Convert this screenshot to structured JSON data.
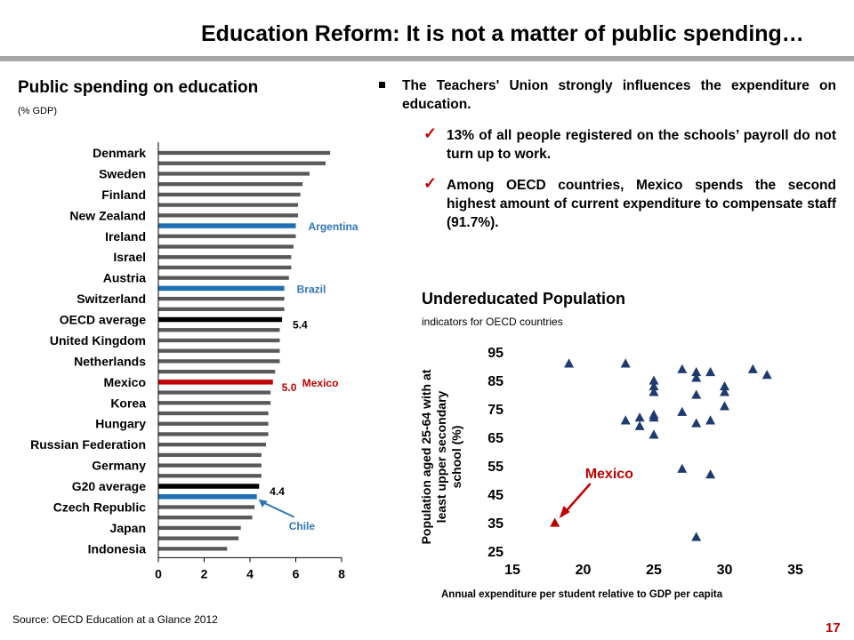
{
  "slide": {
    "title": "Education Reform: It is not a matter of public spending…",
    "source": "Source: OECD Education at a Glance 2012",
    "page_number": "17"
  },
  "bullets": {
    "main": "The Teachers' Union strongly influences the expenditure on education.",
    "sub": [
      "13% of all people registered on the schools’ payroll do not turn up to work.",
      "Among OECD countries, Mexico spends the second highest amount of current expenditure to compensate staff (91.7%)."
    ]
  },
  "colors": {
    "bar_default": "#595959",
    "bar_blue": "#1f6fb5",
    "bar_black": "#000000",
    "bar_red": "#c00000",
    "accent_red": "#c00000",
    "marker_navy": "#1f3a6e",
    "label_blue": "#2e75b6"
  },
  "chart_data": [
    {
      "type": "bar",
      "orientation": "horizontal",
      "title": "Public spending on education",
      "subtitle": "(% GDP)",
      "xlim": [
        0,
        8
      ],
      "xticks": [
        "0",
        "2",
        "4",
        "6",
        "8"
      ],
      "grid": false,
      "bars": [
        {
          "label": "Denmark",
          "value": 7.5,
          "color": "default"
        },
        {
          "label": "",
          "value": 7.3,
          "color": "default"
        },
        {
          "label": "Sweden",
          "value": 6.6,
          "color": "default"
        },
        {
          "label": "",
          "value": 6.3,
          "color": "default"
        },
        {
          "label": "Finland",
          "value": 6.2,
          "color": "default"
        },
        {
          "label": "",
          "value": 6.1,
          "color": "default"
        },
        {
          "label": "New Zealand",
          "value": 6.1,
          "color": "default"
        },
        {
          "label": "",
          "value": 6.0,
          "color": "blue",
          "annotation": "Argentina"
        },
        {
          "label": "Ireland",
          "value": 6.0,
          "color": "default"
        },
        {
          "label": "",
          "value": 5.9,
          "color": "default"
        },
        {
          "label": "Israel",
          "value": 5.8,
          "color": "default"
        },
        {
          "label": "",
          "value": 5.8,
          "color": "default"
        },
        {
          "label": "Austria",
          "value": 5.7,
          "color": "default"
        },
        {
          "label": "",
          "value": 5.5,
          "color": "blue",
          "annotation": "Brazil"
        },
        {
          "label": "Switzerland",
          "value": 5.5,
          "color": "default"
        },
        {
          "label": "",
          "value": 5.5,
          "color": "default"
        },
        {
          "label": "OECD average",
          "value": 5.4,
          "color": "black",
          "data_label": "5.4"
        },
        {
          "label": "",
          "value": 5.3,
          "color": "default"
        },
        {
          "label": "United Kingdom",
          "value": 5.3,
          "color": "default"
        },
        {
          "label": "",
          "value": 5.3,
          "color": "default"
        },
        {
          "label": "Netherlands",
          "value": 5.3,
          "color": "default"
        },
        {
          "label": "",
          "value": 5.1,
          "color": "default"
        },
        {
          "label": "Mexico",
          "value": 5.0,
          "color": "red",
          "data_label": "5.0",
          "annotation": "Mexico"
        },
        {
          "label": "",
          "value": 4.9,
          "color": "default"
        },
        {
          "label": "Korea",
          "value": 4.9,
          "color": "default"
        },
        {
          "label": "",
          "value": 4.8,
          "color": "default"
        },
        {
          "label": "Hungary",
          "value": 4.8,
          "color": "default"
        },
        {
          "label": "",
          "value": 4.8,
          "color": "default"
        },
        {
          "label": "Russian Federation",
          "value": 4.7,
          "color": "default"
        },
        {
          "label": "",
          "value": 4.5,
          "color": "default"
        },
        {
          "label": "Germany",
          "value": 4.5,
          "color": "default"
        },
        {
          "label": "",
          "value": 4.5,
          "color": "default"
        },
        {
          "label": "G20 average",
          "value": 4.4,
          "color": "black",
          "data_label": "4.4"
        },
        {
          "label": "",
          "value": 4.3,
          "color": "blue",
          "annotation": "Chile"
        },
        {
          "label": "Czech Republic",
          "value": 4.2,
          "color": "default"
        },
        {
          "label": "",
          "value": 4.1,
          "color": "default"
        },
        {
          "label": "Japan",
          "value": 3.6,
          "color": "default"
        },
        {
          "label": "",
          "value": 3.5,
          "color": "default"
        },
        {
          "label": "Indonesia",
          "value": 3.0,
          "color": "default"
        }
      ]
    },
    {
      "type": "scatter",
      "title": "Undereducated Population",
      "subtitle": "indicators for OECD countries",
      "xlabel": "Annual expenditure per student relative to GDP per capita",
      "ylabel": "Population aged 25-64 with at least upper secondary school (%)",
      "xlim": [
        15,
        35
      ],
      "ylim": [
        25,
        95
      ],
      "xticks": [
        15,
        20,
        25,
        30,
        35
      ],
      "yticks": [
        25,
        35,
        45,
        55,
        65,
        75,
        85,
        95
      ],
      "grid": false,
      "marker": "triangle",
      "highlight": {
        "label": "Mexico",
        "x": 18,
        "y": 35,
        "marker": "triangle",
        "color": "red"
      },
      "points": [
        {
          "x": 19,
          "y": 91
        },
        {
          "x": 23,
          "y": 91
        },
        {
          "x": 25,
          "y": 85
        },
        {
          "x": 25,
          "y": 83
        },
        {
          "x": 25,
          "y": 81
        },
        {
          "x": 27,
          "y": 89
        },
        {
          "x": 28,
          "y": 88
        },
        {
          "x": 28,
          "y": 86
        },
        {
          "x": 29,
          "y": 88
        },
        {
          "x": 32,
          "y": 89
        },
        {
          "x": 33,
          "y": 87
        },
        {
          "x": 28,
          "y": 80
        },
        {
          "x": 30,
          "y": 83
        },
        {
          "x": 30,
          "y": 81
        },
        {
          "x": 30,
          "y": 76
        },
        {
          "x": 27,
          "y": 74
        },
        {
          "x": 29,
          "y": 71
        },
        {
          "x": 28,
          "y": 70
        },
        {
          "x": 23,
          "y": 71
        },
        {
          "x": 24,
          "y": 72
        },
        {
          "x": 24,
          "y": 69
        },
        {
          "x": 25,
          "y": 73
        },
        {
          "x": 25,
          "y": 72
        },
        {
          "x": 25,
          "y": 66
        },
        {
          "x": 27,
          "y": 54
        },
        {
          "x": 29,
          "y": 52
        },
        {
          "x": 28,
          "y": 30
        }
      ]
    }
  ]
}
